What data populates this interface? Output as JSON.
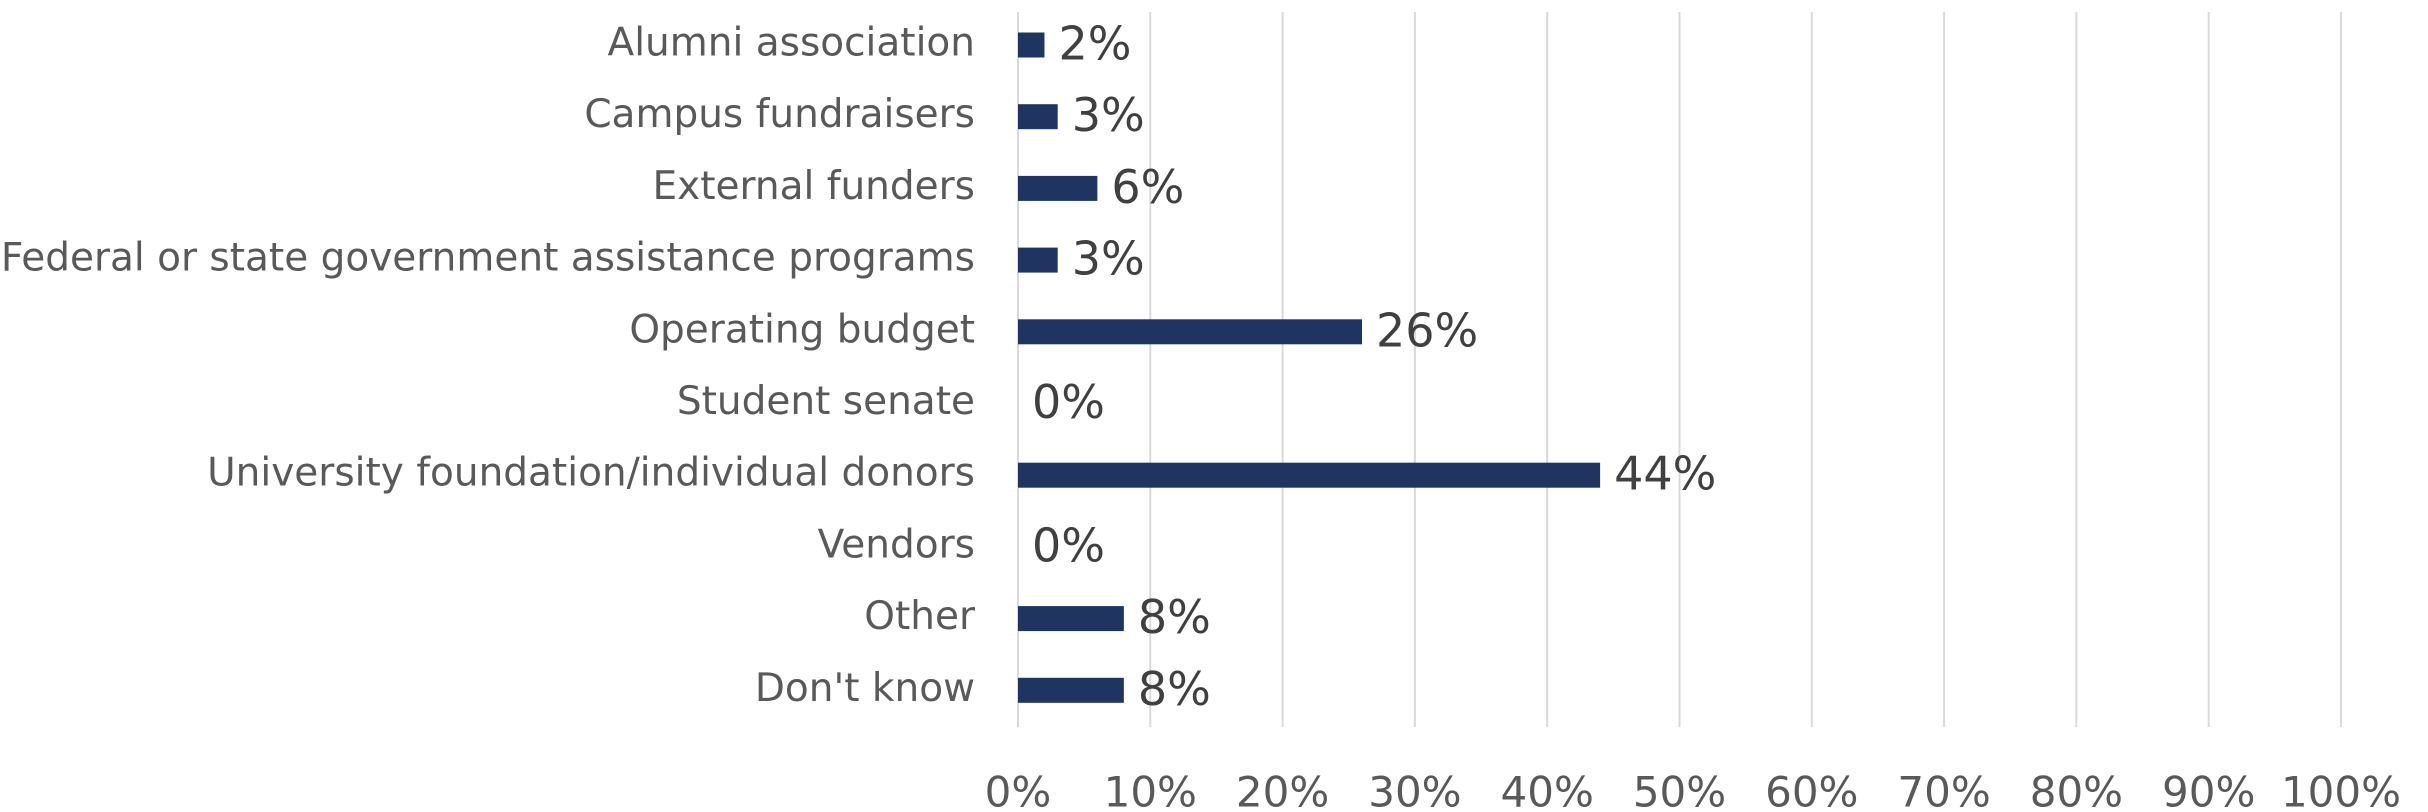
{
  "chart_data": {
    "type": "hbar",
    "categories": [
      "Alumni association",
      "Campus fundraisers",
      "External funders",
      "Federal or state government assistance programs",
      "Operating budget",
      "Student senate",
      "University foundation/individual donors",
      "Vendors",
      "Other",
      "Don't know"
    ],
    "values": [
      2,
      3,
      6,
      3,
      26,
      0,
      44,
      0,
      8,
      8
    ],
    "value_labels": [
      "2%",
      "3%",
      "6%",
      "3%",
      "26%",
      "0%",
      "44%",
      "0%",
      "8%",
      "8%"
    ],
    "color": "#1f3461",
    "xlim": [
      0,
      100
    ],
    "xticks": [
      {
        "value": 0,
        "label": "0%"
      },
      {
        "value": 10,
        "label": "10%"
      },
      {
        "value": 20,
        "label": "20%"
      },
      {
        "value": 30,
        "label": "30%"
      },
      {
        "value": 40,
        "label": "40%"
      },
      {
        "value": 50,
        "label": "50%"
      },
      {
        "value": 60,
        "label": "60%"
      },
      {
        "value": 70,
        "label": "70%"
      },
      {
        "value": 80,
        "label": "80%"
      },
      {
        "value": 90,
        "label": "90%"
      },
      {
        "value": 100,
        "label": "100%"
      }
    ],
    "grid": true
  }
}
